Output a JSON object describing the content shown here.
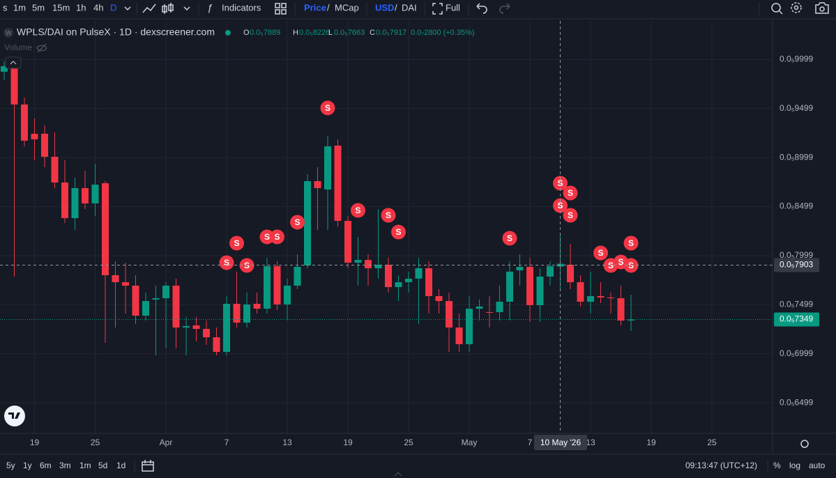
{
  "toolbar": {
    "symbol_cut": "s",
    "intervals": [
      "1m",
      "5m",
      "15m",
      "1h",
      "4h",
      "D"
    ],
    "indicators": "Indicators",
    "price": "Price",
    "price_sep": "/",
    "mcap": "MCap",
    "usd": "USD",
    "usd_sep": "/",
    "dai": "DAI",
    "full": "Full"
  },
  "legend": {
    "symbol": "WPLS/DAI on PulseX · 1D · dexscreener.com",
    "ohlc": [
      {
        "key": "O",
        "value": "0.0₅7889"
      },
      {
        "key": "H",
        "value": "0.0₅8226"
      },
      {
        "key": "L",
        "value": "0.0₅7663"
      },
      {
        "key": "C",
        "value": "0.0₅7917"
      }
    ],
    "change": "0.0₇2800 (+0.35%)",
    "volume": "Volume"
  },
  "chart_data": {
    "type": "candlestick",
    "categories": [
      null,
      null,
      null,
      "19",
      null,
      null,
      null,
      null,
      null,
      "25",
      null,
      null,
      null,
      null,
      null,
      null,
      "Apr",
      null,
      null,
      null,
      null,
      null,
      "7",
      null,
      null,
      null,
      null,
      null,
      "13",
      null,
      null,
      null,
      null,
      null,
      "19",
      null,
      null,
      null,
      null,
      null,
      "25",
      null,
      null,
      null,
      null,
      null,
      "May",
      null,
      null,
      null,
      null,
      null,
      "7",
      null,
      null,
      null,
      null,
      null,
      "13",
      null,
      null,
      null,
      null,
      null,
      "19",
      null,
      null,
      null,
      null,
      null,
      "25",
      null,
      null,
      null,
      null,
      null
    ],
    "open": [
      9.874e-06,
      9.931e-06,
      9.54e-06,
      9.242e-06,
      9.242e-06,
      9.007e-06,
      8.745e-06,
      8.382e-06,
      8.688e-06,
      8.532e-06,
      8.738e-06,
      7.8e-06,
      7.729e-06,
      7.694e-06,
      7.388e-06,
      7.552e-06,
      7.566e-06,
      7.694e-06,
      7.267e-06,
      7.289e-06,
      7.253e-06,
      7.168e-06,
      7.019e-06,
      7.509e-06,
      7.317e-06,
      7.509e-06,
      7.459e-06,
      7.892e-06,
      7.502e-06,
      7.694e-06,
      7.9e-06,
      8.759e-06,
      8.674e-06,
      9.121e-06,
      8.354e-06,
      7.928e-06,
      7.956e-06,
      7.871e-06,
      7.907e-06,
      7.679e-06,
      7.729e-06,
      7.765e-06,
      7.871e-06,
      7.587e-06,
      7.537e-06,
      7.267e-06,
      7.097e-06,
      7.459e-06,
      7.424e-06,
      7.424e-06,
      7.53e-06,
      7.85e-06,
      7.885e-06,
      7.495e-06,
      7.786e-06,
      7.889e-06,
      7.907e-06,
      7.729e-06,
      7.53e-06,
      7.587e-06,
      7.573e-06,
      7.566e-06,
      7.338e-06,
      null,
      null,
      null,
      null,
      null,
      null,
      null,
      null,
      null,
      null,
      null,
      null,
      null
    ],
    "high": [
      9.98e-06,
      1.0002e-05,
      9.611e-06,
      9.398e-06,
      9.327e-06,
      9.256e-06,
      8.972e-06,
      8.794e-06,
      8.865e-06,
      8.936e-06,
      8.759e-06,
      7.942e-06,
      7.928e-06,
      7.8e-06,
      7.623e-06,
      7.694e-06,
      7.729e-06,
      7.765e-06,
      7.374e-06,
      7.374e-06,
      7.338e-06,
      7.267e-06,
      7.587e-06,
      7.836e-06,
      7.623e-06,
      7.623e-06,
      7.978e-06,
      7.942e-06,
      7.765e-06,
      8.013e-06,
      8.83e-06,
      8.901e-06,
      9.221e-06,
      9.185e-06,
      8.404e-06,
      8.191e-06,
      8.013e-06,
      8.475e-06,
      7.978e-06,
      7.8e-06,
      7.836e-06,
      7.978e-06,
      7.942e-06,
      7.658e-06,
      7.623e-06,
      7.409e-06,
      7.587e-06,
      7.552e-06,
      7.587e-06,
      7.694e-06,
      7.942e-06,
      8.013e-06,
      7.978e-06,
      7.871e-06,
      7.942e-06,
      8.226e-06,
      8.12e-06,
      7.8e-06,
      7.836e-06,
      7.729e-06,
      7.623e-06,
      7.694e-06,
      7.601e-06,
      null,
      null,
      null,
      null,
      null,
      null,
      null,
      null,
      null,
      null,
      null,
      null,
      null
    ],
    "low": [
      9.789e-06,
      7.786e-06,
      9.114e-06,
      8.972e-06,
      8.901e-06,
      8.688e-06,
      8.333e-06,
      8.262e-06,
      8.475e-06,
      8.404e-06,
      7.111e-06,
      7.267e-06,
      7.409e-06,
      7.303e-06,
      7.338e-06,
      6.983e-06,
      7.054e-06,
      7.054e-06,
      6.983e-06,
      7.125e-06,
      7.09e-06,
      6.983e-06,
      6.983e-06,
      7.267e-06,
      7.267e-06,
      7.409e-06,
      7.409e-06,
      7.445e-06,
      7.338e-06,
      7.658e-06,
      7.871e-06,
      8.262e-06,
      8.262e-06,
      8.297e-06,
      7.871e-06,
      7.694e-06,
      7.694e-06,
      7.765e-06,
      7.623e-06,
      7.537e-06,
      7.623e-06,
      7.303e-06,
      7.409e-06,
      7.409e-06,
      7.019e-06,
      7.019e-06,
      7.019e-06,
      7.338e-06,
      7.267e-06,
      7.338e-06,
      7.338e-06,
      7.694e-06,
      7.324e-06,
      7.324e-06,
      7.694e-06,
      7.663e-06,
      7.658e-06,
      7.481e-06,
      7.409e-06,
      7.516e-06,
      7.409e-06,
      7.289e-06,
      7.232e-06,
      null,
      null,
      null,
      null,
      null,
      null,
      null,
      null,
      null,
      null,
      null,
      null,
      null
    ],
    "close": [
      9.931e-06,
      9.54e-06,
      9.171e-06,
      9.185e-06,
      9.007e-06,
      8.745e-06,
      8.382e-06,
      8.688e-06,
      8.532e-06,
      8.723e-06,
      7.8e-06,
      7.729e-06,
      7.694e-06,
      7.388e-06,
      7.537e-06,
      7.566e-06,
      7.694e-06,
      7.267e-06,
      7.282e-06,
      7.253e-06,
      7.168e-06,
      7.019e-06,
      7.509e-06,
      7.317e-06,
      7.502e-06,
      7.459e-06,
      7.892e-06,
      7.502e-06,
      7.694e-06,
      7.885e-06,
      8.759e-06,
      8.688e-06,
      9.114e-06,
      8.354e-06,
      7.928e-06,
      7.956e-06,
      7.871e-06,
      7.907e-06,
      7.679e-06,
      7.729e-06,
      7.765e-06,
      7.871e-06,
      7.587e-06,
      7.537e-06,
      7.267e-06,
      7.097e-06,
      7.459e-06,
      7.481e-06,
      7.417e-06,
      7.53e-06,
      7.836e-06,
      7.885e-06,
      7.495e-06,
      7.786e-06,
      7.892e-06,
      7.917e-06,
      7.729e-06,
      7.53e-06,
      7.587e-06,
      7.573e-06,
      7.566e-06,
      7.338e-06,
      7.349e-06,
      null,
      null,
      null,
      null,
      null,
      null,
      null,
      null,
      null,
      null,
      null,
      null,
      null
    ],
    "up_color": "#089981",
    "down_color": "#f23645",
    "marker_label": "S",
    "marker_color": "#f23645",
    "sell_markers": [
      [],
      [],
      [],
      [],
      [],
      [],
      [],
      [],
      [],
      [],
      [],
      [],
      [],
      [],
      [],
      [],
      [],
      [],
      [],
      [],
      [],
      [],
      [
        7.928e-06
      ],
      [
        8.127e-06
      ],
      [
        7.9e-06
      ],
      [],
      [
        8.191e-06
      ],
      [
        8.191e-06
      ],
      [],
      [
        8.34e-06
      ],
      [],
      [],
      [
        9.505e-06
      ],
      [],
      [],
      [
        8.461e-06
      ],
      [],
      [],
      [
        8.411e-06
      ],
      [
        8.24e-06
      ],
      [],
      [],
      [],
      [],
      [],
      [],
      [],
      [],
      [],
      [],
      [
        8.177e-06
      ],
      [],
      [],
      [],
      [],
      [
        8.738e-06,
        8.51e-06
      ],
      [
        8.638e-06,
        8.411e-06
      ],
      [],
      [],
      [
        8.027e-06
      ],
      [
        7.9e-06
      ],
      [
        7.935e-06
      ],
      [
        8.127e-06,
        7.9e-06
      ],
      [],
      [],
      [],
      [],
      [],
      [],
      [],
      [],
      [],
      [],
      [],
      [],
      []
    ],
    "ylim": [
      6.188e-06,
      1.0392e-05
    ],
    "yticks": [
      {
        "value": 6.499e-06,
        "label": "0.0₅6499"
      },
      {
        "value": 6.999e-06,
        "label": "0.0₅6999"
      },
      {
        "value": 7.499e-06,
        "label": "0.0₅7499"
      },
      {
        "value": 7.999e-06,
        "label": "0.0₅7999"
      },
      {
        "value": 8.499e-06,
        "label": "0.0₅8499"
      },
      {
        "value": 8.999e-06,
        "label": "0.0₅8999"
      },
      {
        "value": 9.499e-06,
        "label": "0.0₅9499"
      },
      {
        "value": 9.999e-06,
        "label": "0.0₅9999"
      }
    ],
    "grid": true,
    "crosshair": {
      "price": {
        "value": 7.903e-06,
        "label": "0.0₅7903"
      },
      "date_label": "10 May '26"
    },
    "last_price": {
      "value": 7.349e-06,
      "label": "0.0₅7349"
    }
  },
  "footer": {
    "ranges": [
      "5y",
      "1y",
      "6m",
      "3m",
      "1m",
      "5d",
      "1d"
    ],
    "time": "09:13:47 (UTC+12)",
    "percent": "%",
    "log": "log",
    "auto": "auto"
  }
}
